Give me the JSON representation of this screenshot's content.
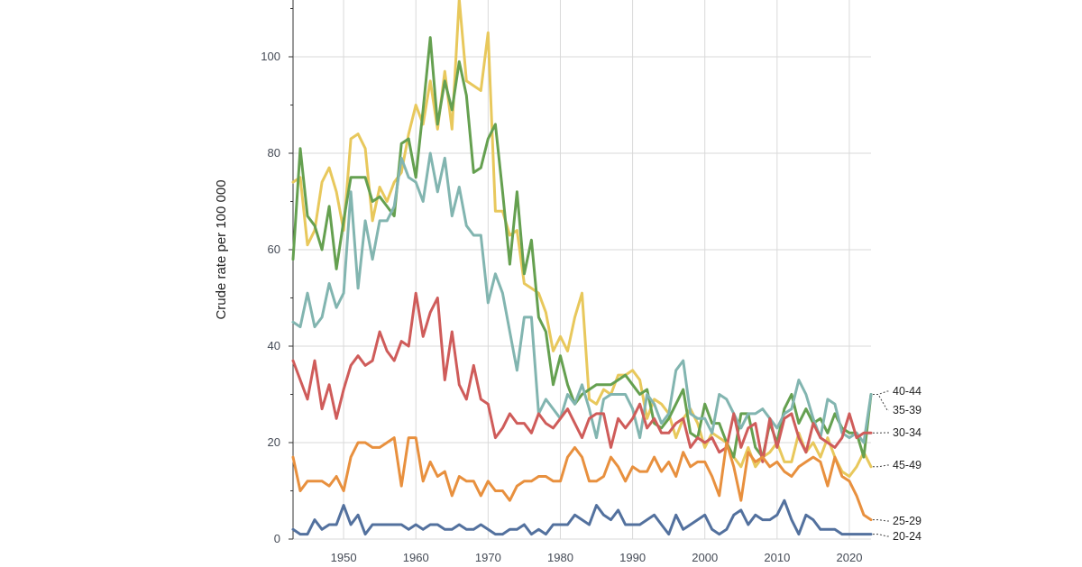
{
  "chart_data": {
    "type": "line",
    "title": "",
    "xlabel": "",
    "ylabel": "Crude rate per 100 000",
    "xlim": [
      1943,
      2023
    ],
    "ylim": [
      0,
      110
    ],
    "x_ticks": [
      1950,
      1960,
      1970,
      1980,
      1990,
      2000,
      2010,
      2020
    ],
    "y_ticks": [
      0,
      20,
      40,
      60,
      80,
      100
    ],
    "grid": true,
    "legend": "direct labels at right end of each line",
    "x": [
      1943,
      1944,
      1945,
      1946,
      1947,
      1948,
      1949,
      1950,
      1951,
      1952,
      1953,
      1954,
      1955,
      1956,
      1957,
      1958,
      1959,
      1960,
      1961,
      1962,
      1963,
      1964,
      1965,
      1966,
      1967,
      1968,
      1969,
      1970,
      1971,
      1972,
      1973,
      1974,
      1975,
      1976,
      1977,
      1978,
      1979,
      1980,
      1981,
      1982,
      1983,
      1984,
      1985,
      1986,
      1987,
      1988,
      1989,
      1990,
      1991,
      1992,
      1993,
      1994,
      1995,
      1996,
      1997,
      1998,
      1999,
      2000,
      2001,
      2002,
      2003,
      2004,
      2005,
      2006,
      2007,
      2008,
      2009,
      2010,
      2011,
      2012,
      2013,
      2014,
      2015,
      2016,
      2017,
      2018,
      2019,
      2020,
      2021,
      2022,
      2023
    ],
    "series": [
      {
        "name": "45-49",
        "color": "#e8c85c",
        "values": [
          74,
          75,
          61,
          64,
          74,
          77,
          72,
          64,
          83,
          84,
          81,
          66,
          73,
          70,
          74,
          76,
          84,
          90,
          86,
          95,
          85,
          97,
          85,
          112,
          95,
          94,
          93,
          105,
          68,
          68,
          63,
          64,
          53,
          52,
          51,
          47,
          39,
          42,
          39,
          46,
          51,
          29,
          28,
          31,
          30,
          34,
          34,
          35,
          33,
          25,
          29,
          28,
          26,
          21,
          25,
          27,
          24,
          19,
          22,
          21,
          20,
          17,
          15,
          19,
          15,
          17,
          18,
          20,
          16,
          16,
          22,
          18,
          20,
          17,
          21,
          17,
          14,
          13,
          15,
          18,
          15
        ]
      },
      {
        "name": "40-44",
        "color": "#65a050",
        "values": [
          58,
          81,
          67,
          65,
          60,
          69,
          56,
          66,
          75,
          75,
          75,
          70,
          71,
          69,
          67,
          82,
          83,
          75,
          89,
          104,
          86,
          95,
          89,
          99,
          92,
          76,
          77,
          83,
          86,
          72,
          57,
          72,
          55,
          62,
          46,
          43,
          32,
          38,
          32,
          28,
          30,
          31,
          32,
          32,
          32,
          33,
          34,
          32,
          30,
          31,
          24,
          23,
          25,
          28,
          31,
          22,
          21,
          28,
          24,
          24,
          20,
          17,
          26,
          26,
          19,
          17,
          24,
          20,
          27,
          30,
          24,
          27,
          24,
          25,
          22,
          26,
          23,
          22,
          22,
          17,
          30
        ]
      },
      {
        "name": "35-39",
        "color": "#82b5b0",
        "values": [
          45,
          44,
          51,
          44,
          46,
          53,
          48,
          51,
          72,
          52,
          66,
          58,
          66,
          66,
          69,
          79,
          75,
          74,
          70,
          80,
          72,
          79,
          67,
          73,
          65,
          63,
          63,
          49,
          55,
          51,
          43,
          35,
          46,
          46,
          26,
          29,
          27,
          25,
          30,
          28,
          32,
          27,
          21,
          29,
          30,
          30,
          30,
          27,
          21,
          30,
          28,
          24,
          26,
          35,
          37,
          26,
          25,
          25,
          22,
          30,
          29,
          26,
          23,
          26,
          26,
          27,
          25,
          23,
          26,
          27,
          33,
          30,
          25,
          21,
          29,
          28,
          22,
          21,
          22,
          20,
          30
        ]
      },
      {
        "name": "30-34",
        "color": "#cf5c5a",
        "values": [
          37,
          33,
          29,
          37,
          27,
          32,
          25,
          31,
          36,
          38,
          36,
          37,
          43,
          39,
          37,
          41,
          40,
          51,
          42,
          47,
          50,
          33,
          43,
          32,
          29,
          36,
          29,
          28,
          21,
          23,
          26,
          24,
          24,
          22,
          26,
          24,
          23,
          25,
          27,
          24,
          21,
          25,
          26,
          26,
          19,
          25,
          23,
          25,
          28,
          23,
          25,
          22,
          22,
          24,
          25,
          19,
          21,
          20,
          21,
          18,
          19,
          26,
          19,
          23,
          24,
          16,
          25,
          19,
          25,
          26,
          21,
          18,
          24,
          21,
          20,
          19,
          21,
          26,
          21,
          22,
          22
        ]
      },
      {
        "name": "25-29",
        "color": "#e8903e",
        "values": [
          17,
          10,
          12,
          12,
          12,
          11,
          13,
          10,
          17,
          20,
          20,
          19,
          19,
          20,
          21,
          11,
          21,
          21,
          12,
          16,
          13,
          14,
          9,
          13,
          12,
          12,
          9,
          12,
          10,
          10,
          8,
          11,
          12,
          12,
          13,
          13,
          12,
          12,
          17,
          19,
          17,
          12,
          12,
          13,
          17,
          15,
          12,
          15,
          14,
          14,
          17,
          14,
          16,
          13,
          18,
          15,
          16,
          16,
          13,
          9,
          20,
          15,
          8,
          18,
          16,
          17,
          15,
          16,
          14,
          13,
          15,
          16,
          17,
          16,
          11,
          17,
          13,
          12,
          9,
          5,
          4
        ]
      },
      {
        "name": "20-24",
        "color": "#53719e",
        "values": [
          2,
          1,
          1,
          4,
          2,
          3,
          3,
          7,
          3,
          5,
          1,
          3,
          3,
          3,
          3,
          3,
          2,
          3,
          2,
          3,
          3,
          2,
          2,
          3,
          2,
          2,
          3,
          2,
          1,
          1,
          2,
          2,
          3,
          1,
          2,
          1,
          3,
          3,
          3,
          5,
          4,
          3,
          7,
          5,
          4,
          6,
          3,
          3,
          3,
          4,
          5,
          3,
          1,
          5,
          2,
          3,
          4,
          5,
          2,
          1,
          2,
          5,
          6,
          3,
          5,
          4,
          4,
          5,
          8,
          4,
          1,
          5,
          4,
          2,
          2,
          2,
          1,
          1,
          1,
          1,
          1
        ]
      }
    ]
  }
}
